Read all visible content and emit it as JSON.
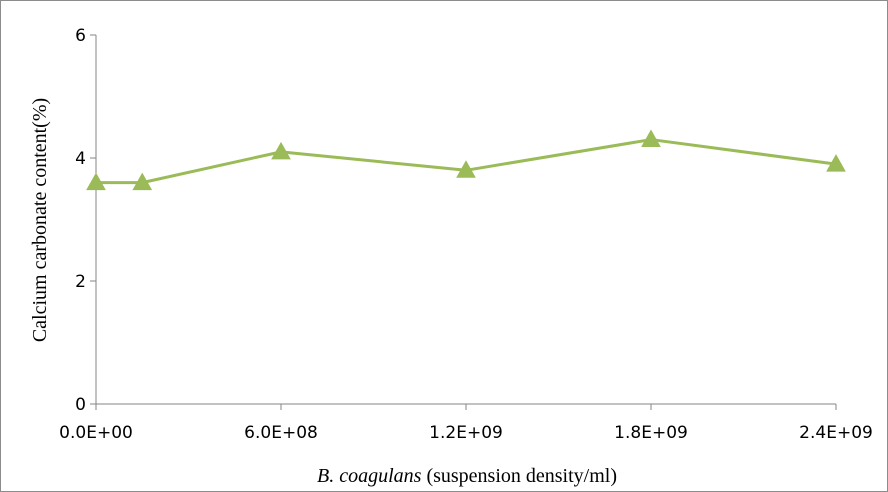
{
  "chart_data": {
    "type": "line",
    "title": "",
    "xlabel_italic": "B. coagulans",
    "xlabel_rest": " (suspension density/ml)",
    "ylabel": "Calcium carbonate content(%)",
    "xlim": [
      0,
      2400000000
    ],
    "ylim": [
      0,
      6
    ],
    "x_ticks": [
      0,
      600000000,
      1200000000,
      1800000000,
      2400000000
    ],
    "x_tick_labels": [
      "0.0E+00",
      "6.0E+08",
      "1.2E+09",
      "1.8E+09",
      "2.4E+09"
    ],
    "y_ticks": [
      0,
      2,
      4,
      6
    ],
    "y_tick_labels": [
      "0",
      "2",
      "4",
      "6"
    ],
    "grid": false,
    "legend": "none",
    "series": [
      {
        "color": "#9BBB59",
        "marker": "triangle",
        "x": [
          0,
          150000000,
          600000000,
          1200000000,
          1800000000,
          2400000000
        ],
        "y": [
          3.6,
          3.6,
          4.1,
          3.8,
          4.3,
          3.9
        ]
      }
    ]
  }
}
